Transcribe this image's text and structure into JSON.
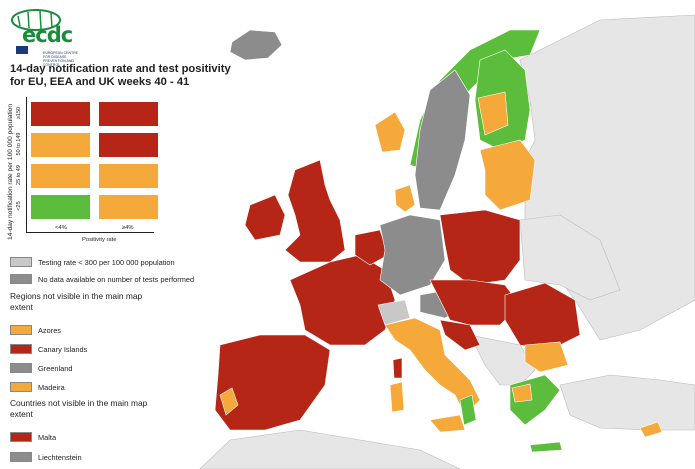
{
  "logo": {
    "text": "ecdc",
    "subtitle": "EUROPEAN CENTRE FOR DISEASE PREVENTION AND CONTROL"
  },
  "title": "14-day notification rate and test positivity for EU, EEA and UK weeks 40 - 41",
  "matrix": {
    "y_axis_label": "14-day notification rate per 100 000 population",
    "x_axis_label": "Positivity rate",
    "rows": [
      "≥150",
      "50 to 149",
      "25 to 49",
      "<25"
    ],
    "cols": [
      "<4%",
      "≥4%"
    ],
    "colors": [
      [
        "#b52617",
        "#b52617"
      ],
      [
        "#f4a93a",
        "#b52617"
      ],
      [
        "#f4a93a",
        "#f4a93a"
      ],
      [
        "#5bbd3b",
        "#f4a93a"
      ]
    ]
  },
  "legend": {
    "testing_rate_low": "Testing rate < 300 per 100 000 population",
    "no_data": "No data available on number of tests performed",
    "regions_head": "Regions not visible in the main map extent",
    "regions": [
      {
        "label": "Azores",
        "color": "#f4a93a"
      },
      {
        "label": "Canary Islands",
        "color": "#b52617"
      },
      {
        "label": "Greenland",
        "color": "#8c8c8c"
      },
      {
        "label": "Madeira",
        "color": "#f4a93a"
      }
    ],
    "countries_head": "Countries not visible in the main map extent",
    "countries": [
      {
        "label": "Malta",
        "color": "#b52617"
      },
      {
        "label": "Liechtenstein",
        "color": "#8c8c8c"
      }
    ]
  },
  "colors": {
    "red": "#b52617",
    "orange": "#f4a93a",
    "green": "#5bbd3b",
    "grey_no_data": "#8c8c8c",
    "grey_low_testing": "#c8c8c8",
    "non_eu": "#e6e6e6",
    "sea": "#ffffff"
  }
}
